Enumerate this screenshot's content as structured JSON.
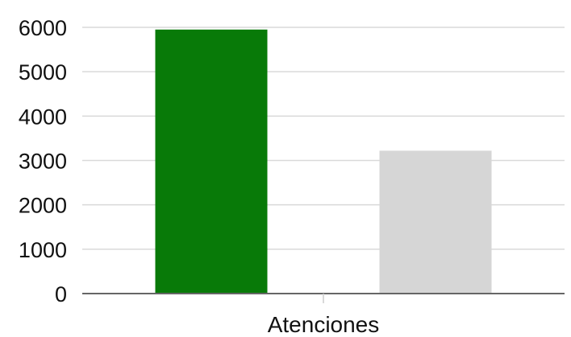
{
  "chart_data": {
    "type": "bar",
    "categories": [
      "Atenciones"
    ],
    "series": [
      {
        "values": [
          5950
        ],
        "color": "#087a08"
      },
      {
        "values": [
          3220
        ],
        "color": "#d6d6d6"
      }
    ],
    "yticks": [
      "0",
      "1000",
      "2000",
      "3000",
      "4000",
      "5000",
      "6000"
    ],
    "ylim": [
      0,
      6000
    ],
    "grid": true,
    "legend": "none"
  }
}
